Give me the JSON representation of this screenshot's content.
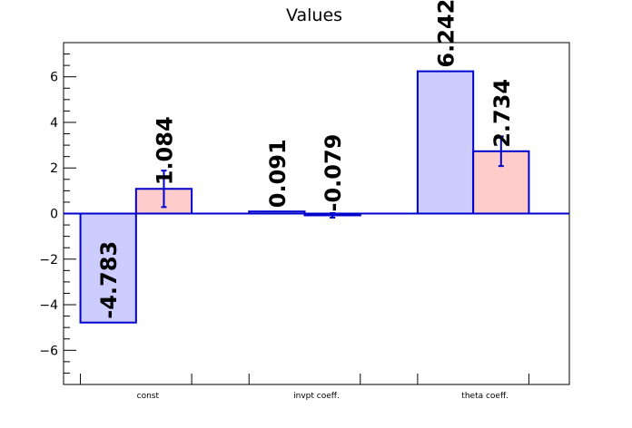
{
  "chart_data": {
    "type": "bar",
    "title": "Values",
    "xlabel": "",
    "ylabel": "",
    "categories": [
      "const",
      "invpt coeff.",
      "theta coeff."
    ],
    "ylim": [
      -7.5,
      7.5
    ],
    "yticks": [
      -6,
      -4,
      -2,
      0,
      2,
      4,
      6
    ],
    "grid": false,
    "series": [
      {
        "values": [
          -4.783,
          0.091,
          6.242
        ],
        "labels": [
          "-4.783",
          "0.091",
          "6.242"
        ],
        "fill_color": "#ccccff",
        "line_color": "#0000cc"
      },
      {
        "values": [
          1.084,
          -0.079,
          2.734
        ],
        "labels": [
          "1.084",
          "-0.079",
          "2.734"
        ],
        "errors": [
          0.8,
          0.1,
          0.65
        ],
        "fill_color": "#ffcccc",
        "line_color": "#0000cc"
      }
    ]
  }
}
